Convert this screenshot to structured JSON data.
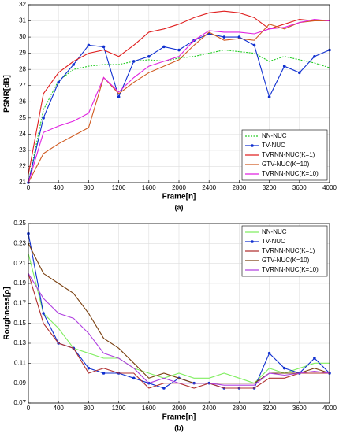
{
  "chart_data": [
    {
      "type": "line",
      "caption": "(a)",
      "x_label": "Frame[n]",
      "y_label": "PSNR[dB]",
      "x": [
        0,
        200,
        400,
        600,
        800,
        1000,
        1200,
        1400,
        1600,
        1800,
        2000,
        2200,
        2400,
        2600,
        2800,
        3000,
        3200,
        3400,
        3600,
        3800,
        4000
      ],
      "xlim": [
        0,
        4000
      ],
      "xticks": [
        0,
        400,
        800,
        1200,
        1600,
        2000,
        2400,
        2800,
        3200,
        3600,
        4000
      ],
      "ylim": [
        21,
        32
      ],
      "yticks": [
        21,
        22,
        23,
        24,
        25,
        26,
        27,
        28,
        29,
        30,
        31,
        32
      ],
      "grid": true,
      "legend": "lower right",
      "series": [
        {
          "name": "NN-NUC",
          "color": "#22cc22",
          "dash": true,
          "values": [
            21,
            25.5,
            27.3,
            28,
            28.2,
            28.3,
            28.3,
            28.5,
            28.6,
            28.5,
            28.7,
            28.8,
            29,
            29.2,
            29.1,
            29,
            28.5,
            28.8,
            28.6,
            28.4,
            28.1
          ]
        },
        {
          "name": "TV-NUC",
          "color": "#1030d0",
          "marker": "circle",
          "values": [
            21,
            25,
            27.2,
            28.3,
            29.5,
            29.4,
            26.3,
            28.5,
            28.8,
            29.4,
            29.2,
            29.8,
            30.2,
            30,
            30,
            29.5,
            26.3,
            28.2,
            27.8,
            28.8,
            29.2
          ]
        },
        {
          "name": "TVRNN-NUC(K=1)",
          "color": "#e02020",
          "values": [
            21.5,
            26.5,
            27.8,
            28.5,
            29,
            29.2,
            28.8,
            29.5,
            30.3,
            30.5,
            30.8,
            31.2,
            31.5,
            31.6,
            31.5,
            31.2,
            30.5,
            30.8,
            31.1,
            31,
            31
          ]
        },
        {
          "name": "GTV-NUC(K=10)",
          "color": "#d05a20",
          "values": [
            21,
            22.8,
            23.4,
            23.9,
            24.4,
            27.5,
            26.5,
            27.2,
            27.8,
            28.2,
            28.6,
            29.5,
            30.3,
            29.8,
            29.9,
            29.8,
            30.8,
            30.5,
            30.9,
            31,
            31
          ]
        },
        {
          "name": "TVRNN-NUC(K=10)",
          "color": "#e020e0",
          "values": [
            21,
            24.1,
            24.5,
            24.8,
            25.3,
            27.5,
            26.6,
            27.5,
            28.2,
            28.5,
            28.8,
            29.8,
            30.4,
            30.3,
            30.3,
            30.2,
            30.5,
            30.6,
            30.9,
            31.1,
            31
          ]
        }
      ]
    },
    {
      "type": "line",
      "caption": "(b)",
      "x_label": "Frame[n]",
      "y_label": "Roughness[ρ]",
      "x": [
        0,
        200,
        400,
        600,
        800,
        1000,
        1200,
        1400,
        1600,
        1800,
        2000,
        2200,
        2400,
        2600,
        2800,
        3000,
        3200,
        3400,
        3600,
        3800,
        4000
      ],
      "xlim": [
        0,
        4000
      ],
      "xticks": [
        0,
        400,
        800,
        1200,
        1600,
        2000,
        2400,
        2800,
        3200,
        3600,
        4000
      ],
      "ylim": [
        0.07,
        0.25
      ],
      "yticks": [
        0.07,
        0.09,
        0.11,
        0.13,
        0.15,
        0.17,
        0.19,
        0.21,
        0.23,
        0.25
      ],
      "grid": true,
      "legend": "upper right",
      "series": [
        {
          "name": "NN-NUC",
          "color": "#80ee60",
          "values": [
            0.22,
            0.16,
            0.145,
            0.125,
            0.12,
            0.115,
            0.115,
            0.105,
            0.1,
            0.095,
            0.1,
            0.095,
            0.095,
            0.1,
            0.095,
            0.09,
            0.105,
            0.1,
            0.105,
            0.11,
            0.11
          ]
        },
        {
          "name": "TV-NUC",
          "color": "#1030d0",
          "marker": "circle",
          "values": [
            0.24,
            0.16,
            0.13,
            0.125,
            0.105,
            0.1,
            0.1,
            0.095,
            0.09,
            0.085,
            0.095,
            0.09,
            0.09,
            0.085,
            0.085,
            0.085,
            0.12,
            0.105,
            0.1,
            0.115,
            0.1
          ]
        },
        {
          "name": "TVRNN-NUC(K=1)",
          "color": "#b03030",
          "values": [
            0.2,
            0.15,
            0.13,
            0.125,
            0.1,
            0.105,
            0.1,
            0.1,
            0.085,
            0.09,
            0.09,
            0.085,
            0.09,
            0.085,
            0.085,
            0.085,
            0.095,
            0.095,
            0.1,
            0.1,
            0.1
          ]
        },
        {
          "name": "GTV-NUC(K=10)",
          "color": "#7a4010",
          "values": [
            0.23,
            0.2,
            0.19,
            0.18,
            0.16,
            0.135,
            0.125,
            0.11,
            0.095,
            0.1,
            0.095,
            0.09,
            0.09,
            0.09,
            0.09,
            0.09,
            0.1,
            0.1,
            0.1,
            0.105,
            0.1
          ]
        },
        {
          "name": "TVRNN-NUC(K=10)",
          "color": "#b040e0",
          "values": [
            0.2,
            0.175,
            0.16,
            0.155,
            0.14,
            0.12,
            0.115,
            0.105,
            0.09,
            0.095,
            0.09,
            0.09,
            0.09,
            0.088,
            0.088,
            0.088,
            0.1,
            0.098,
            0.1,
            0.102,
            0.1
          ]
        }
      ]
    }
  ]
}
